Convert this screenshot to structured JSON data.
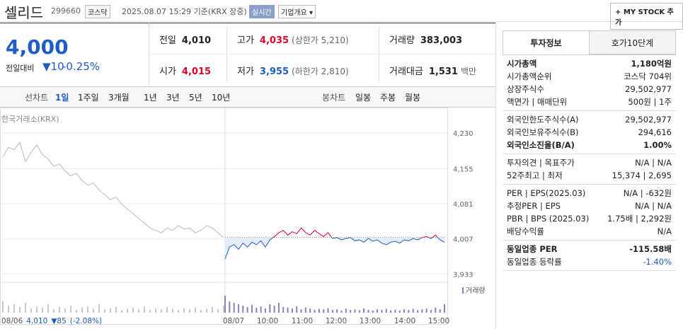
{
  "header": {
    "name": "셀리드",
    "code": "299660",
    "market": "코스닥",
    "datetime": "2025.08.07 15:29 기준(KRX 장중)",
    "realtime": "실시간",
    "company_info": "기업개요",
    "my_stock": "MY STOCK 추가"
  },
  "price": {
    "current": "4,000",
    "change_label": "전일대비",
    "change": "10",
    "change_rate": "-0.25%"
  },
  "summary": [
    {
      "label": "전일",
      "value": "4,010",
      "color": "#222"
    },
    {
      "label": "고가",
      "value": "4,035",
      "sub": "(상한가 5,210)",
      "color": "#e0002a"
    },
    {
      "label": "거래량",
      "value": "383,003",
      "color": "#222"
    },
    {
      "label": "시가",
      "value": "4,015",
      "color": "#e0002a"
    },
    {
      "label": "저가",
      "value": "3,955",
      "sub": "(하한가 2,810)",
      "color": "#1e5cc6"
    },
    {
      "label": "거래대금",
      "value": "1,531",
      "sub": "백만",
      "color": "#222"
    }
  ],
  "tabs": {
    "line": "선차트",
    "periods": [
      "1일",
      "1주일",
      "3개월",
      "1년",
      "3년",
      "5년",
      "10년"
    ],
    "candle": "봉차트",
    "candles": [
      "일봉",
      "주봉",
      "월봉"
    ]
  },
  "chart": {
    "source": "한국거래소(KRX)",
    "ylim": [
      3917,
      4272
    ],
    "yticks": [
      {
        "value": 4230,
        "label": "4,230"
      },
      {
        "value": 4155,
        "label": "4,155"
      },
      {
        "value": 4081,
        "label": "4,081"
      },
      {
        "value": 4007,
        "label": "4,007"
      },
      {
        "value": 3933,
        "label": "3,933"
      }
    ],
    "baseline": 4010,
    "x_labels": [
      "08/06",
      "08/07",
      "10:00",
      "11:00",
      "12:00",
      "13:00",
      "14:00",
      "15:00"
    ],
    "prev_day": [
      4180,
      4200,
      4195,
      4210,
      4170,
      4190,
      4205,
      4185,
      4175,
      4160,
      4165,
      4150,
      4140,
      4145,
      4130,
      4120,
      4125,
      4110,
      4100,
      4090,
      4095,
      4080,
      4070,
      4060,
      4050,
      4040,
      4030,
      4025,
      4020,
      4030,
      4025,
      4035,
      4028,
      4030,
      4020,
      4025,
      4035,
      4030,
      4020,
      4010
    ],
    "today": [
      3965,
      3990,
      3995,
      3985,
      3998,
      3990,
      4000,
      3995,
      4003,
      3990,
      4005,
      4012,
      4020,
      4025,
      4015,
      4022,
      4018,
      4030,
      4020,
      4015,
      4025,
      4018,
      4012,
      4020,
      4008,
      4010,
      4005,
      4008,
      4010,
      4003,
      4005,
      4000,
      4008,
      4002,
      4005,
      3998,
      3995,
      4000,
      4002,
      3998,
      4005,
      4003,
      4008,
      4005,
      4010,
      4012,
      4008,
      4015,
      4005,
      4000
    ],
    "volume_label": "거래량",
    "volume_ylim": [
      0,
      100
    ],
    "prev_volume": [
      40,
      25,
      30,
      20,
      35,
      15,
      22,
      18,
      30,
      12,
      20,
      15,
      25,
      10,
      18,
      22,
      14,
      30,
      12,
      16,
      20,
      10,
      14,
      18,
      12,
      22,
      10,
      15,
      12,
      20,
      14,
      10,
      16,
      12,
      18,
      10,
      14,
      20,
      12,
      25
    ],
    "today_volume": [
      60,
      40,
      35,
      30,
      25,
      20,
      28,
      18,
      22,
      15,
      30,
      25,
      35,
      20,
      18,
      15,
      22,
      12,
      18,
      15,
      10,
      14,
      12,
      16,
      10,
      12,
      8,
      14,
      10,
      12,
      9,
      15,
      10,
      8,
      12,
      10,
      14,
      9,
      11,
      8,
      12,
      10,
      14,
      9,
      12,
      15,
      10,
      18,
      12,
      30
    ]
  },
  "footer_quote": {
    "date": "08/06",
    "price": "4,010",
    "change": "85",
    "rate": "(-2.08%)"
  },
  "side": {
    "tabs": [
      "투자정보",
      "호가10단계"
    ],
    "groups": [
      [
        {
          "label": "시가총액",
          "value": "1,180억원",
          "bold": true
        },
        {
          "label": "시가총액순위",
          "value": "코스닥 704위"
        },
        {
          "label": "상장주식수",
          "value": "29,502,977"
        },
        {
          "label": "액면가 | 매매단위",
          "value": "500원 | 1주"
        }
      ],
      [
        {
          "label": "외국인한도주식수(A)",
          "value": "29,502,977"
        },
        {
          "label": "외국인보유주식수(B)",
          "value": "294,616"
        },
        {
          "label": "외국인소진율(B/A)",
          "value": "1.00%",
          "bold": true
        }
      ],
      [
        {
          "label": "투자의견 | 목표주가",
          "value": "N/A | N/A"
        },
        {
          "label": "52주최고 | 최저",
          "value": "15,374 | 2,695"
        }
      ],
      [
        {
          "label": "PER | EPS(2025.03)",
          "value": "N/A | -632원"
        },
        {
          "label": "추정PER | EPS",
          "value": "N/A | N/A"
        },
        {
          "label": "PBR | BPS (2025.03)",
          "value": "1.75배 | 2,292원"
        },
        {
          "label": "배당수익률",
          "value": "N/A"
        }
      ],
      [
        {
          "label": "동일업종 PER",
          "value": "-115.58배",
          "bold": true
        },
        {
          "label": "동일업종 등락률",
          "value": "-1.40%",
          "color": "#1e5cc6"
        }
      ]
    ]
  }
}
